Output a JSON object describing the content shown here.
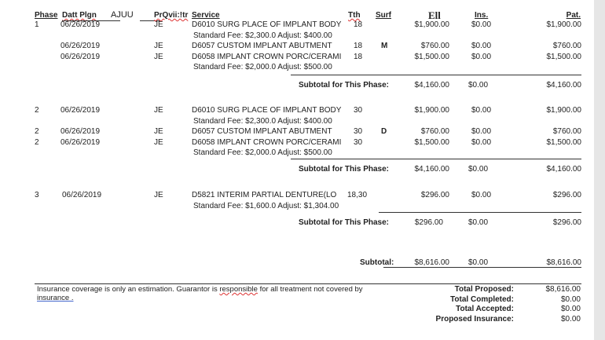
{
  "header": {
    "phase": "Phase",
    "date": "Datt Plgn",
    "extra": "AJUU",
    "provider": "PrQvii:!tr",
    "service": "Service",
    "tth": "Tth",
    "surf": "Surf",
    "fee": "Ell",
    "ins": "Ins.",
    "pat": "Pat."
  },
  "phases": [
    {
      "rows": [
        {
          "phase": "1",
          "date": "06/26/2019",
          "prov": "JE",
          "service": "D6010 SURG PLACE OF IMPLANT BODY",
          "tth": "18",
          "surf": "",
          "fee": "$1,900.00",
          "ins": "$0.00",
          "pat": "$1,900.00",
          "note": "Standard Fee: $2,300.0 Adjust: $400.00"
        },
        {
          "phase": "",
          "date": "06/26/2019",
          "prov": "JE",
          "service": "D6057 CUSTOM IMPLANT ABUTMENT",
          "tth": "18",
          "surf": "M",
          "fee": "$760.00",
          "ins": "$0.00",
          "pat": "$760.00",
          "note": ""
        },
        {
          "phase": "",
          "date": "06/26/2019",
          "prov": "JE",
          "service": "D6058 IMPLANT CROWN PORC/CERAMI",
          "tth": "18",
          "surf": "",
          "fee": "$1,500.00",
          "ins": "$0.00",
          "pat": "$1,500.00",
          "note": "Standard Fee: $2,000.0 Adjust: $500.00"
        }
      ],
      "subtotal_label": "Subtotal for This Phase:",
      "subtotal": {
        "fee": "$4,160.00",
        "ins": "$0.00",
        "pat": "$4,160.00"
      }
    },
    {
      "rows": [
        {
          "phase": "2",
          "date": "06/26/2019",
          "prov": "JE",
          "service": "D6010 SURG PLACE OF IMPLANT BODY",
          "tth": "30",
          "surf": "",
          "fee": "$1,900.00",
          "ins": "$0.00",
          "pat": "$1,900.00",
          "note": "Standard Fee: $2,300.0 Adjust: $400.00"
        },
        {
          "phase": "2",
          "date": "06/26/2019",
          "prov": "JE",
          "service": "D6057 CUSTOM IMPLANT ABUTMENT",
          "tth": "30",
          "surf": "D",
          "fee": "$760.00",
          "ins": "$0.00",
          "pat": "$760.00",
          "note": ""
        },
        {
          "phase": "2",
          "date": "06/26/2019",
          "prov": "JE",
          "service": "D6058 IMPLANT CROWN PORC/CERAMI",
          "tth": "30",
          "surf": "",
          "fee": "$1,500.00",
          "ins": "$0.00",
          "pat": "$1,500.00",
          "note": "Standard Fee: $2,000.0 Adjust: $500.00"
        }
      ],
      "subtotal_label": "Subtotal for This Phase:",
      "subtotal": {
        "fee": "$4,160.00",
        "ins": "$0.00",
        "pat": "$4,160.00"
      }
    },
    {
      "rows": [
        {
          "phase": "3",
          "date": "06/26/2019",
          "prov": "JE",
          "service": "D5821  INTERIM PARTIAL DENTURE(LO",
          "tth": "18,30",
          "surf": "",
          "fee": "$296.00",
          "ins": "$0.00",
          "pat": "$296.00",
          "note": "Standard Fee: $1,600.0 Adjust: $1,304.00"
        }
      ],
      "subtotal_label": "Subtotal for This Phase:",
      "subtotal": {
        "fee": "$296.00",
        "ins": "$0.00",
        "pat": "$296.00"
      }
    }
  ],
  "grand": {
    "label": "Subtotal:",
    "fee": "$8,616.00",
    "ins": "$0.00",
    "pat": "$8,616.00"
  },
  "footer": {
    "disclaimer_a": "Insurance coverage is only an estimation. Guarantor is ",
    "disclaimer_b": "responsible",
    "disclaimer_c": " for all treatment not covered by",
    "disclaimer_d": "insurance .",
    "totals": [
      {
        "label": "Total Proposed:",
        "value": "$8,616.00"
      },
      {
        "label": "Total Completed:",
        "value": "$0.00"
      },
      {
        "label": "Total Accepted:",
        "value": "$0.00"
      },
      {
        "label": "Proposed Insurance:",
        "value": "$0.00"
      }
    ]
  }
}
